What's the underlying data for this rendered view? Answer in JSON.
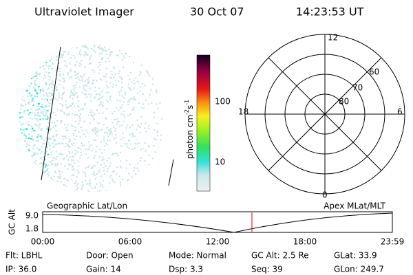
{
  "header": {
    "title": "Ultraviolet Imager",
    "date": "30 Oct 07",
    "time": "14:23:53 UT"
  },
  "colorbar": {
    "label": {
      "base": "photon cm",
      "exp1": "-2",
      "mid": "s",
      "exp2": "-1"
    },
    "ticks": [
      "100",
      "10"
    ]
  },
  "polar": {
    "mlt": [
      "12",
      "18",
      "6",
      "0"
    ],
    "lat": [
      "60",
      "70",
      "80"
    ]
  },
  "timeline": {
    "left_label": "Geographic Lat/Lon",
    "right_label": "Apex MLat/MLT",
    "y_label": "GC Alt",
    "y_ticks": [
      "9.0",
      "1.8"
    ],
    "x_ticks": [
      "00:00",
      "06:00",
      "12:00",
      "18:00",
      "23:59"
    ]
  },
  "footer": {
    "rows": [
      [
        "Flt: LBHL",
        "Door: Open",
        "Mode: Normal",
        "GC Alt: 2.5 Re",
        "GLat: 33.9"
      ],
      [
        "IP: 36.0",
        "Gain: 14",
        "Dsp:     3.3",
        "Seq: 39",
        "GLon: 249.7"
      ]
    ]
  }
}
